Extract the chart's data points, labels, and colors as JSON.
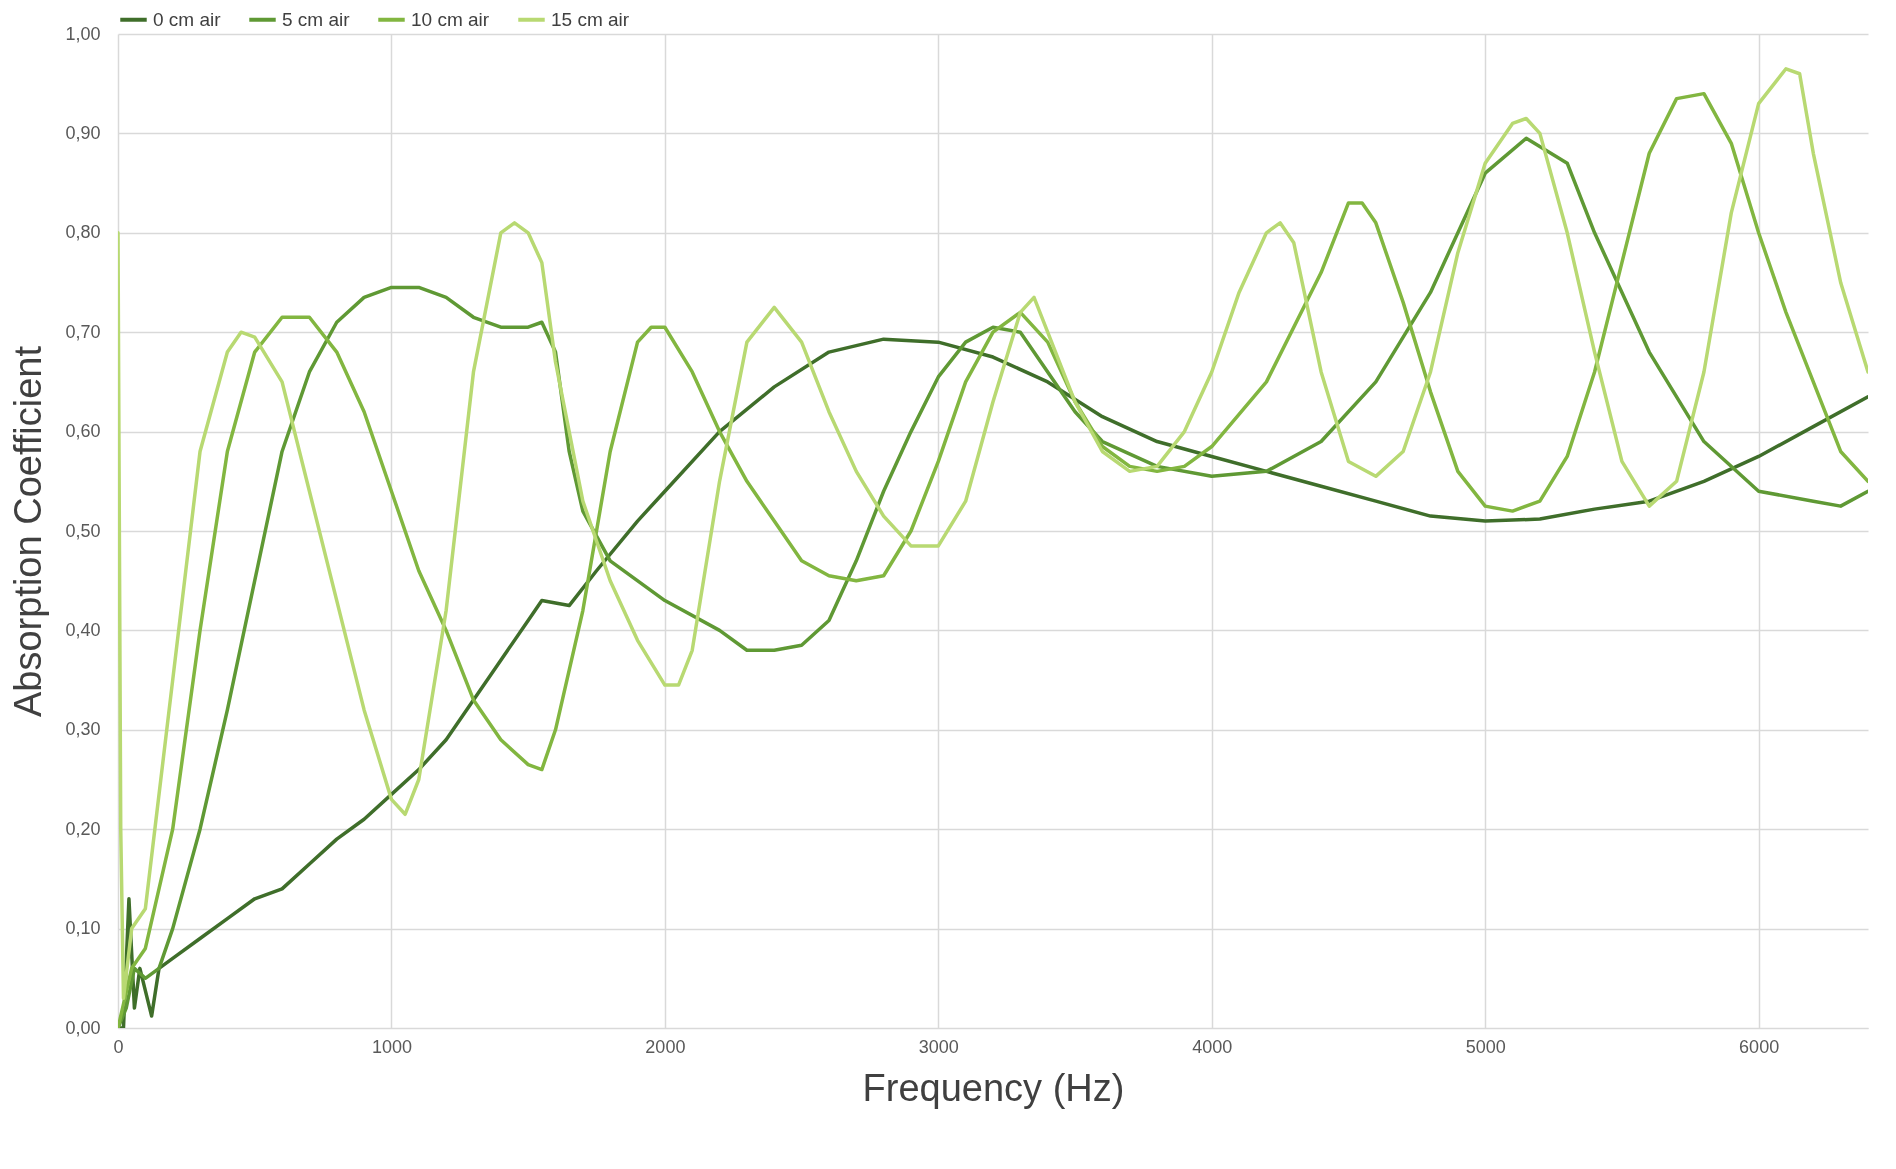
{
  "chart_data": {
    "type": "line",
    "xlabel": "Frequency (Hz)",
    "ylabel": "Absorption Coefficient",
    "xlim": [
      0,
      6400
    ],
    "xticks": [
      0,
      1000,
      2000,
      3000,
      4000,
      5000,
      6000
    ],
    "ylim": [
      0,
      1
    ],
    "yticks": [
      {
        "value": 0,
        "label": "0,00"
      },
      {
        "value": 0.1,
        "label": "0,10"
      },
      {
        "value": 0.2,
        "label": "0,20"
      },
      {
        "value": 0.3,
        "label": "0,30"
      },
      {
        "value": 0.4,
        "label": "0,40"
      },
      {
        "value": 0.5,
        "label": "0,50"
      },
      {
        "value": 0.6,
        "label": "0,60"
      },
      {
        "value": 0.7,
        "label": "0,70"
      },
      {
        "value": 0.8,
        "label": "0,80"
      },
      {
        "value": 0.9,
        "label": "0,90"
      },
      {
        "value": 1,
        "label": "1,00"
      }
    ],
    "grid": true,
    "legend": "top",
    "marker": "none",
    "line_style": "solid",
    "series": [
      {
        "name": "0 cm air",
        "color": "#3f6e2a",
        "x": [
          0,
          20,
          40,
          60,
          80,
          123,
          150,
          200,
          300,
          400,
          500,
          600,
          700,
          800,
          900,
          1000,
          1100,
          1200,
          1300,
          1400,
          1500,
          1550,
          1650,
          1750,
          1900,
          2000,
          2200,
          2400,
          2600,
          2800,
          3000,
          3200,
          3400,
          3600,
          3800,
          4000,
          4200,
          4400,
          4600,
          4800,
          5000,
          5200,
          5400,
          5600,
          5800,
          6000,
          6200,
          6400
        ],
        "values": [
          0,
          0,
          0.13,
          0.02,
          0.06,
          0.012,
          0.06,
          0.07,
          0.09,
          0.11,
          0.13,
          0.14,
          0.165,
          0.19,
          0.21,
          0.235,
          0.26,
          0.29,
          0.33,
          0.37,
          0.41,
          0.43,
          0.425,
          0.46,
          0.51,
          0.54,
          0.6,
          0.645,
          0.68,
          0.693,
          0.69,
          0.675,
          0.65,
          0.615,
          0.59,
          0.575,
          0.56,
          0.545,
          0.53,
          0.515,
          0.51,
          0.512,
          0.522,
          0.53,
          0.55,
          0.575,
          0.605,
          0.635
        ]
      },
      {
        "name": "5 cm air",
        "color": "#5f9934",
        "x": [
          0,
          30,
          60,
          100,
          150,
          200,
          300,
          400,
          500,
          600,
          700,
          800,
          900,
          1000,
          1100,
          1200,
          1300,
          1400,
          1500,
          1550,
          1600,
          1650,
          1700,
          1800,
          2000,
          2200,
          2300,
          2400,
          2500,
          2600,
          2700,
          2800,
          2900,
          3000,
          3100,
          3200,
          3300,
          3400,
          3500,
          3600,
          3800,
          4000,
          4200,
          4400,
          4600,
          4800,
          5000,
          5150,
          5300,
          5400,
          5600,
          5800,
          6000,
          6200,
          6300,
          6400
        ],
        "values": [
          0,
          0.02,
          0.06,
          0.05,
          0.06,
          0.1,
          0.2,
          0.32,
          0.45,
          0.58,
          0.66,
          0.71,
          0.735,
          0.745,
          0.745,
          0.735,
          0.715,
          0.705,
          0.705,
          0.71,
          0.68,
          0.58,
          0.52,
          0.47,
          0.43,
          0.4,
          0.38,
          0.38,
          0.385,
          0.41,
          0.47,
          0.54,
          0.6,
          0.655,
          0.69,
          0.705,
          0.7,
          0.66,
          0.62,
          0.59,
          0.565,
          0.555,
          0.56,
          0.59,
          0.65,
          0.74,
          0.86,
          0.895,
          0.87,
          0.8,
          0.68,
          0.59,
          0.54,
          0.53,
          0.525,
          0.54
        ]
      },
      {
        "name": "10 cm air",
        "color": "#82b640",
        "x": [
          0,
          50,
          100,
          200,
          300,
          400,
          500,
          600,
          700,
          800,
          900,
          1000,
          1100,
          1200,
          1300,
          1400,
          1500,
          1550,
          1600,
          1700,
          1800,
          1900,
          1950,
          2000,
          2100,
          2200,
          2300,
          2400,
          2500,
          2600,
          2700,
          2800,
          2900,
          3000,
          3100,
          3200,
          3300,
          3400,
          3500,
          3600,
          3700,
          3800,
          3900,
          4000,
          4200,
          4400,
          4500,
          4550,
          4600,
          4700,
          4800,
          4900,
          5000,
          5100,
          5200,
          5300,
          5400,
          5500,
          5600,
          5700,
          5800,
          5900,
          6000,
          6100,
          6200,
          6300,
          6400
        ],
        "values": [
          0,
          0.06,
          0.08,
          0.2,
          0.4,
          0.58,
          0.68,
          0.715,
          0.715,
          0.68,
          0.62,
          0.54,
          0.46,
          0.4,
          0.33,
          0.29,
          0.265,
          0.26,
          0.3,
          0.42,
          0.58,
          0.69,
          0.705,
          0.705,
          0.66,
          0.6,
          0.55,
          0.51,
          0.47,
          0.455,
          0.45,
          0.455,
          0.5,
          0.57,
          0.65,
          0.7,
          0.72,
          0.69,
          0.63,
          0.585,
          0.565,
          0.56,
          0.565,
          0.585,
          0.65,
          0.76,
          0.83,
          0.83,
          0.81,
          0.73,
          0.64,
          0.56,
          0.525,
          0.52,
          0.53,
          0.575,
          0.66,
          0.77,
          0.88,
          0.935,
          0.94,
          0.89,
          0.8,
          0.72,
          0.65,
          0.58,
          0.55
        ]
      },
      {
        "name": "15 cm air",
        "color": "#b8d972",
        "x": [
          0,
          10,
          20,
          50,
          100,
          200,
          300,
          400,
          450,
          500,
          600,
          700,
          800,
          900,
          1000,
          1050,
          1100,
          1200,
          1300,
          1400,
          1450,
          1500,
          1550,
          1600,
          1700,
          1800,
          1900,
          2000,
          2050,
          2100,
          2200,
          2300,
          2400,
          2500,
          2600,
          2700,
          2800,
          2900,
          3000,
          3100,
          3200,
          3300,
          3350,
          3400,
          3500,
          3600,
          3700,
          3800,
          3900,
          4000,
          4100,
          4200,
          4250,
          4300,
          4400,
          4500,
          4600,
          4700,
          4800,
          4900,
          5000,
          5100,
          5150,
          5200,
          5300,
          5400,
          5500,
          5600,
          5700,
          5800,
          5900,
          6000,
          6100,
          6150,
          6200,
          6300,
          6400
        ],
        "values": [
          0.8,
          0.2,
          0.03,
          0.1,
          0.12,
          0.35,
          0.58,
          0.68,
          0.7,
          0.695,
          0.65,
          0.54,
          0.43,
          0.32,
          0.23,
          0.215,
          0.25,
          0.42,
          0.66,
          0.8,
          0.81,
          0.8,
          0.77,
          0.67,
          0.53,
          0.45,
          0.39,
          0.345,
          0.345,
          0.38,
          0.55,
          0.69,
          0.725,
          0.69,
          0.62,
          0.56,
          0.515,
          0.485,
          0.485,
          0.53,
          0.63,
          0.72,
          0.735,
          0.7,
          0.63,
          0.58,
          0.56,
          0.565,
          0.6,
          0.66,
          0.74,
          0.8,
          0.81,
          0.79,
          0.66,
          0.57,
          0.555,
          0.58,
          0.66,
          0.78,
          0.87,
          0.91,
          0.915,
          0.9,
          0.8,
          0.68,
          0.57,
          0.525,
          0.55,
          0.66,
          0.82,
          0.93,
          0.965,
          0.96,
          0.88,
          0.75,
          0.66
        ]
      }
    ]
  }
}
